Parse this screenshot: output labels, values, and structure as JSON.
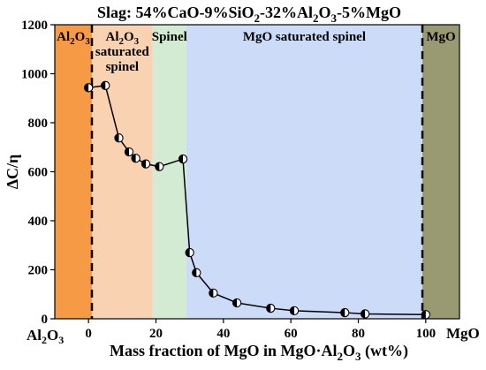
{
  "chart_data": {
    "type": "line",
    "title": "Slag: 54%CaO-9%SiO₂-32%Al₂O₃-5%MgO",
    "title_parts": [
      {
        "t": "Slag:  54%CaO-9%SiO"
      },
      {
        "t": "2",
        "sub": true
      },
      {
        "t": "-32%Al"
      },
      {
        "t": "2",
        "sub": true
      },
      {
        "t": "O"
      },
      {
        "t": "3",
        "sub": true
      },
      {
        "t": "-5%MgO"
      }
    ],
    "xlabel": "Mass fraction of MgO in MgO·Al₂O₃ (wt%)",
    "xlabel_parts": [
      {
        "t": "Mass fraction of MgO in MgO·Al"
      },
      {
        "t": "2",
        "sub": true
      },
      {
        "t": "O"
      },
      {
        "t": "3",
        "sub": true
      },
      {
        "t": " (wt%)"
      }
    ],
    "ylabel": "ΔC/η",
    "xlim": [
      -10,
      110
    ],
    "ylim": [
      0,
      1200
    ],
    "x_ticks": [
      0,
      20,
      40,
      60,
      80,
      100
    ],
    "y_ticks": [
      0,
      200,
      400,
      600,
      800,
      1000,
      1200
    ],
    "x_end_labels": {
      "left": [
        {
          "t": "Al"
        },
        {
          "t": "2",
          "sub": true
        },
        {
          "t": "O"
        },
        {
          "t": "3",
          "sub": true
        }
      ],
      "right": [
        {
          "t": "MgO"
        }
      ]
    },
    "regions": [
      {
        "x0": -10,
        "x1": 1,
        "color": "#f79a45",
        "label": [
          [
            {
              "t": "Al"
            },
            {
              "t": "2",
              "sub": true
            },
            {
              "t": "O"
            },
            {
              "t": "3",
              "sub": true
            }
          ]
        ],
        "label_color": "#ffffff"
      },
      {
        "x0": 1,
        "x1": 19,
        "color": "#f9d2b2",
        "label": [
          [
            {
              "t": "Al"
            },
            {
              "t": "2",
              "sub": true
            },
            {
              "t": "O"
            },
            {
              "t": "3",
              "sub": true
            }
          ],
          [
            {
              "t": "saturated"
            }
          ],
          [
            {
              "t": "spinel"
            }
          ]
        ],
        "label_color": "#ffffff"
      },
      {
        "x0": 19,
        "x1": 29,
        "color": "#d2ebd2",
        "label": [
          [
            {
              "t": "Spinel"
            }
          ]
        ],
        "label_color": "#ffffff"
      },
      {
        "x0": 29,
        "x1": 99,
        "color": "#ccdcf8",
        "label": [
          [
            {
              "t": "MgO saturated spinel"
            }
          ]
        ],
        "label_color": "#ffffff"
      },
      {
        "x0": 99,
        "x1": 110,
        "color": "#9a9a72",
        "label": [
          [
            {
              "t": "MgO"
            }
          ]
        ],
        "label_color": "#ffffff"
      }
    ],
    "boundaries": [
      1,
      99
    ],
    "series": [
      {
        "x": [
          0,
          5,
          9,
          12,
          14,
          17,
          21,
          28,
          30,
          32,
          37,
          44,
          54,
          61,
          76,
          82,
          100
        ],
        "y": [
          943,
          952,
          738,
          681,
          655,
          632,
          621,
          652,
          270,
          188,
          105,
          65,
          43,
          33,
          25,
          20,
          17
        ]
      }
    ]
  }
}
